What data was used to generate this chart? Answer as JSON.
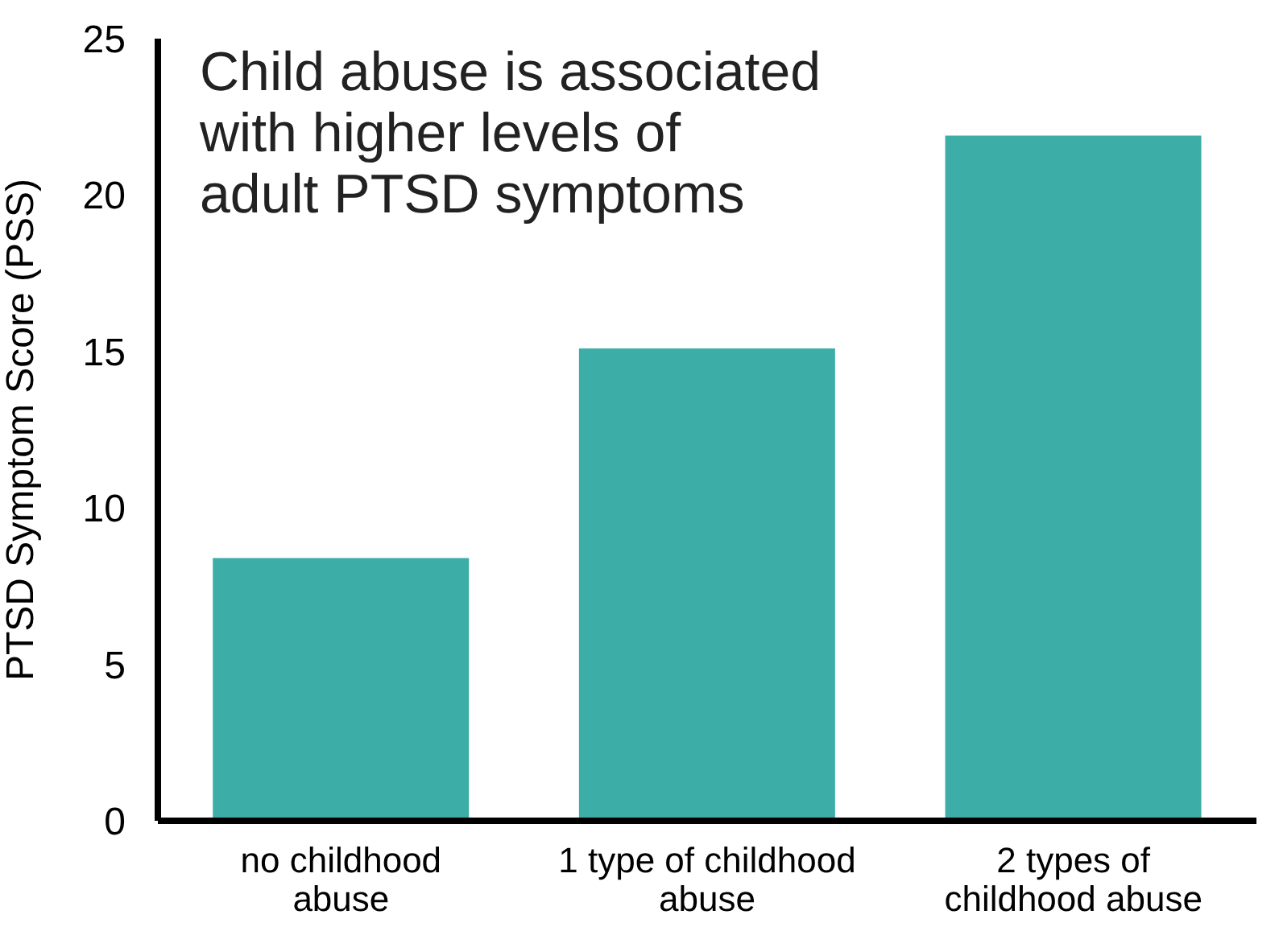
{
  "chart_data": {
    "type": "bar",
    "title": "Child abuse is associated\nwith higher levels of\nadult PTSD symptoms",
    "ylabel": "PTSD Symptom Score (PSS)",
    "categories": [
      "no childhood\nabuse",
      "1 type of childhood\nabuse",
      "2 types of\nchildhood abuse"
    ],
    "values": [
      8.4,
      15.1,
      21.9
    ],
    "color": "#3dada8",
    "ylim": [
      0,
      25
    ],
    "yticks": [
      0,
      5,
      10,
      15,
      20,
      25
    ],
    "grid": false
  }
}
